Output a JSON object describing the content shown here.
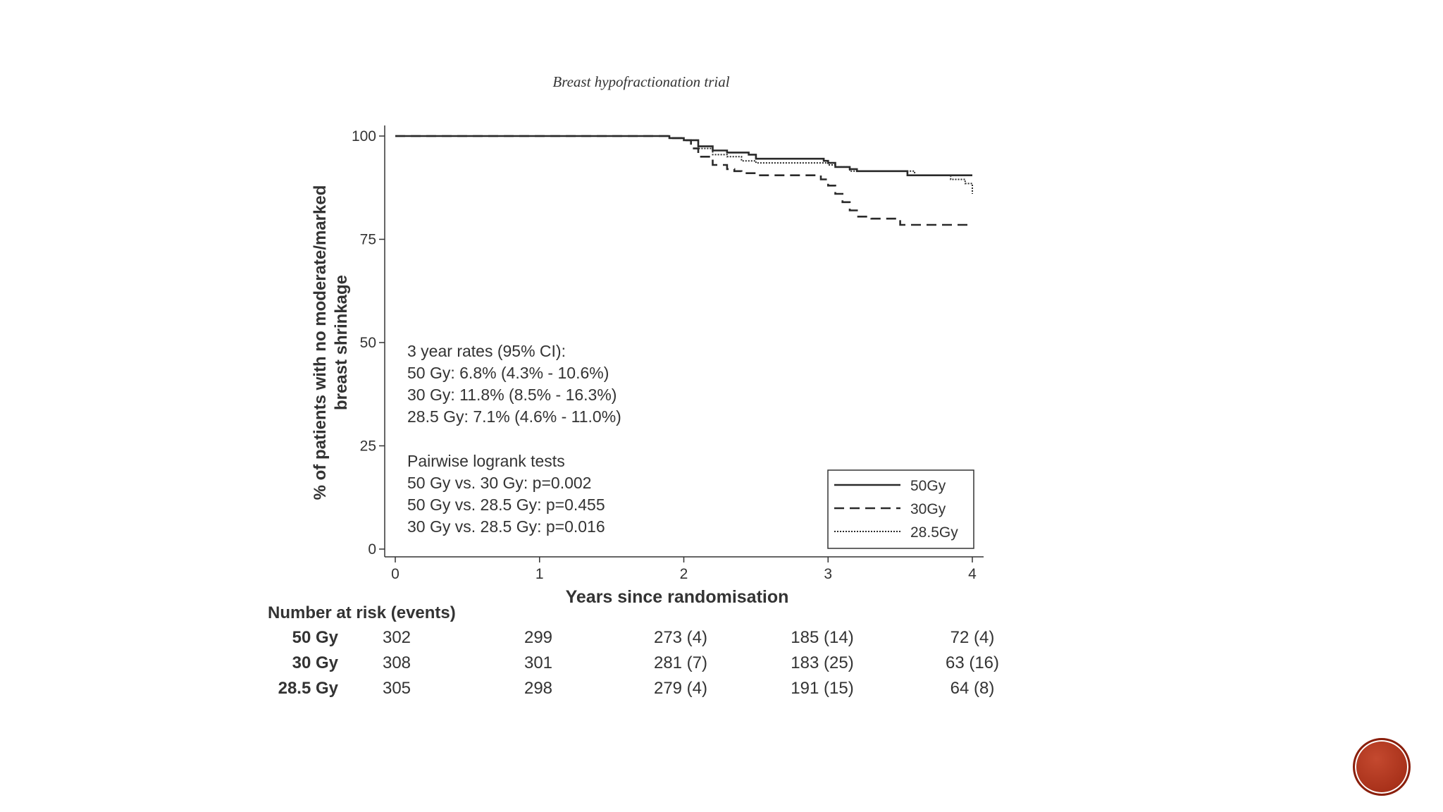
{
  "caption": "Breast hypofractionation trial",
  "chart_data": {
    "type": "line",
    "ylabel_line1": "% of patients with no moderate/marked",
    "ylabel_line2": "breast shrinkage",
    "xlabel": "Years since randomisation",
    "xlim": [
      0,
      4
    ],
    "ylim": [
      0,
      100
    ],
    "xticks": [
      "0",
      "1",
      "2",
      "3",
      "4"
    ],
    "yticks": [
      "0",
      "25",
      "50",
      "75",
      "100"
    ],
    "legend_position": "bottom-right",
    "series": [
      {
        "name": "50Gy",
        "style": "solid",
        "x": [
          0,
          1.5,
          1.9,
          2.0,
          2.1,
          2.2,
          2.3,
          2.45,
          2.5,
          2.9,
          2.97,
          3.0,
          3.05,
          3.15,
          3.2,
          3.35,
          3.5,
          3.55,
          4.0
        ],
        "y": [
          100,
          100,
          99.5,
          99,
          97.5,
          96.5,
          96,
          95.5,
          94.5,
          94.5,
          94,
          93.5,
          92.5,
          92,
          91.5,
          91.5,
          91.5,
          90.5,
          90.5
        ]
      },
      {
        "name": "30Gy",
        "style": "dashed",
        "x": [
          0,
          1.5,
          1.9,
          2.0,
          2.05,
          2.1,
          2.2,
          2.3,
          2.35,
          2.4,
          2.5,
          2.9,
          2.95,
          3.0,
          3.05,
          3.1,
          3.15,
          3.2,
          3.3,
          3.5,
          4.0
        ],
        "y": [
          100,
          100,
          99.5,
          99,
          97,
          95,
          93,
          92,
          91.5,
          91,
          90.5,
          90.5,
          89.5,
          88,
          86,
          84,
          82,
          80.5,
          80,
          78.5,
          78.5
        ]
      },
      {
        "name": "28.5Gy",
        "style": "dotted",
        "x": [
          0,
          1.5,
          1.9,
          2.0,
          2.1,
          2.2,
          2.3,
          2.4,
          2.5,
          2.9,
          3.0,
          3.05,
          3.15,
          3.5,
          3.6,
          3.75,
          3.85,
          3.9,
          3.95,
          4.0
        ],
        "y": [
          100,
          100,
          99.5,
          99,
          97,
          95.5,
          95,
          94,
          93.5,
          93.5,
          93,
          92.5,
          91.5,
          91.5,
          90.5,
          90.5,
          89.5,
          89.5,
          88.5,
          86
        ]
      }
    ],
    "annotations": {
      "rates": [
        "3 year rates (95% CI):",
        "50 Gy: 6.8% (4.3% - 10.6%)",
        "30 Gy: 11.8% (8.5% - 16.3%)",
        "28.5 Gy: 7.1% (4.6% - 11.0%)"
      ],
      "tests": [
        "Pairwise logrank tests",
        "50 Gy vs. 30 Gy: p=0.002",
        "50 Gy vs. 28.5 Gy: p=0.455",
        "30 Gy vs. 28.5 Gy: p=0.016"
      ]
    },
    "risk_table": {
      "title": "Number at risk (events)",
      "rows": [
        {
          "label": "50 Gy",
          "values": [
            "302",
            "299",
            "273 (4)",
            "185 (14)",
            "72 (4)"
          ]
        },
        {
          "label": "30 Gy",
          "values": [
            "308",
            "301",
            "281 (7)",
            "183 (25)",
            "63 (16)"
          ]
        },
        {
          "label": "28.5 Gy",
          "values": [
            "305",
            "298",
            "279 (4)",
            "191 (15)",
            "64 (8)"
          ]
        }
      ]
    }
  }
}
